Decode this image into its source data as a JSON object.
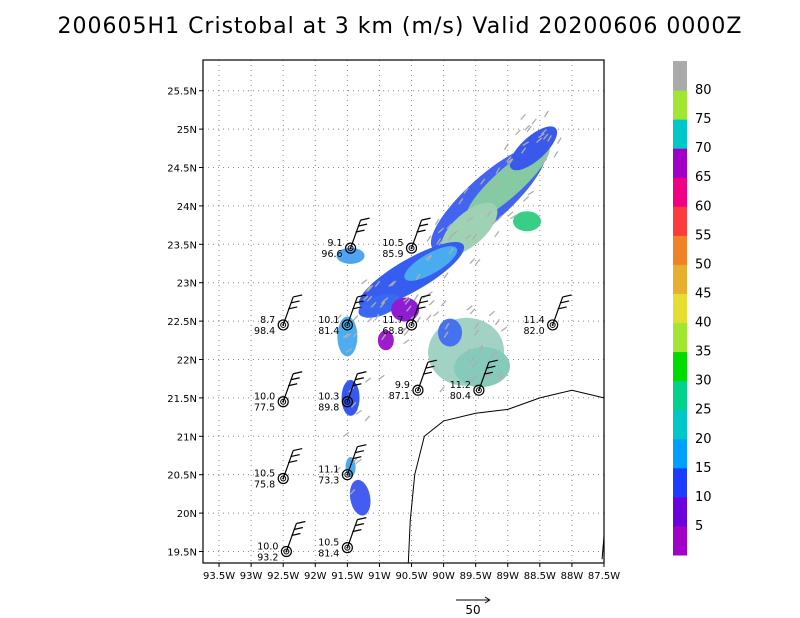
{
  "title": "200605H1 Cristobal at 3 km (m/s) Valid 20200606 0000Z",
  "map": {
    "lon_ticks": [
      "93.5W",
      "93W",
      "92.5W",
      "92W",
      "91.5W",
      "91W",
      "90.5W",
      "90W",
      "89.5W",
      "89W",
      "88.5W",
      "88W",
      "87.5W"
    ],
    "lat_ticks": [
      "19.5N",
      "20N",
      "20.5N",
      "21N",
      "21.5N",
      "22N",
      "22.5N",
      "23N",
      "23.5N",
      "24N",
      "24.5N",
      "25N",
      "25.5N"
    ],
    "lon_range": [
      -93.75,
      -87.5
    ],
    "lat_range": [
      19.35,
      25.9
    ],
    "grid": true
  },
  "colorbar": {
    "labels": [
      "5",
      "10",
      "15",
      "20",
      "25",
      "30",
      "35",
      "40",
      "45",
      "50",
      "55",
      "60",
      "65",
      "70",
      "75",
      "80"
    ],
    "colors": [
      "#a000c8",
      "#6e00dc",
      "#1e3cff",
      "#00a0ff",
      "#00c8c8",
      "#00d28c",
      "#00dc00",
      "#a0e632",
      "#e6dc32",
      "#e6af2d",
      "#f08228",
      "#fa3c3c",
      "#f00082",
      "#a000c8",
      "#00c8c8",
      "#a0e632",
      "#aaaaaa"
    ]
  },
  "scale_vector": {
    "label": "50"
  },
  "stations": [
    {
      "speed": "9.1",
      "dir": "96.6",
      "lon": -91.45,
      "lat": 23.45
    },
    {
      "speed": "10.5",
      "dir": "85.9",
      "lon": -90.5,
      "lat": 23.45
    },
    {
      "speed": "8.7",
      "dir": "98.4",
      "lon": -92.5,
      "lat": 22.45
    },
    {
      "speed": "10.1",
      "dir": "81.4",
      "lon": -91.5,
      "lat": 22.45
    },
    {
      "speed": "11.7",
      "dir": "68.8",
      "lon": -90.5,
      "lat": 22.45
    },
    {
      "speed": "11.4",
      "dir": "82.0",
      "lon": -88.3,
      "lat": 22.45
    },
    {
      "speed": "9.9",
      "dir": "87.1",
      "lon": -90.4,
      "lat": 21.6
    },
    {
      "speed": "11.2",
      "dir": "80.4",
      "lon": -89.45,
      "lat": 21.6
    },
    {
      "speed": "10.0",
      "dir": "77.5",
      "lon": -92.5,
      "lat": 21.45
    },
    {
      "speed": "10.3",
      "dir": "89.8",
      "lon": -91.5,
      "lat": 21.45
    },
    {
      "speed": "10.5",
      "dir": "75.8",
      "lon": -92.5,
      "lat": 20.45
    },
    {
      "speed": "11.1",
      "dir": "73.3",
      "lon": -91.5,
      "lat": 20.5
    },
    {
      "speed": "10.0",
      "dir": "93.2",
      "lon": -92.45,
      "lat": 19.5
    },
    {
      "speed": "10.5",
      "dir": "81.4",
      "lon": -91.5,
      "lat": 19.55
    }
  ]
}
